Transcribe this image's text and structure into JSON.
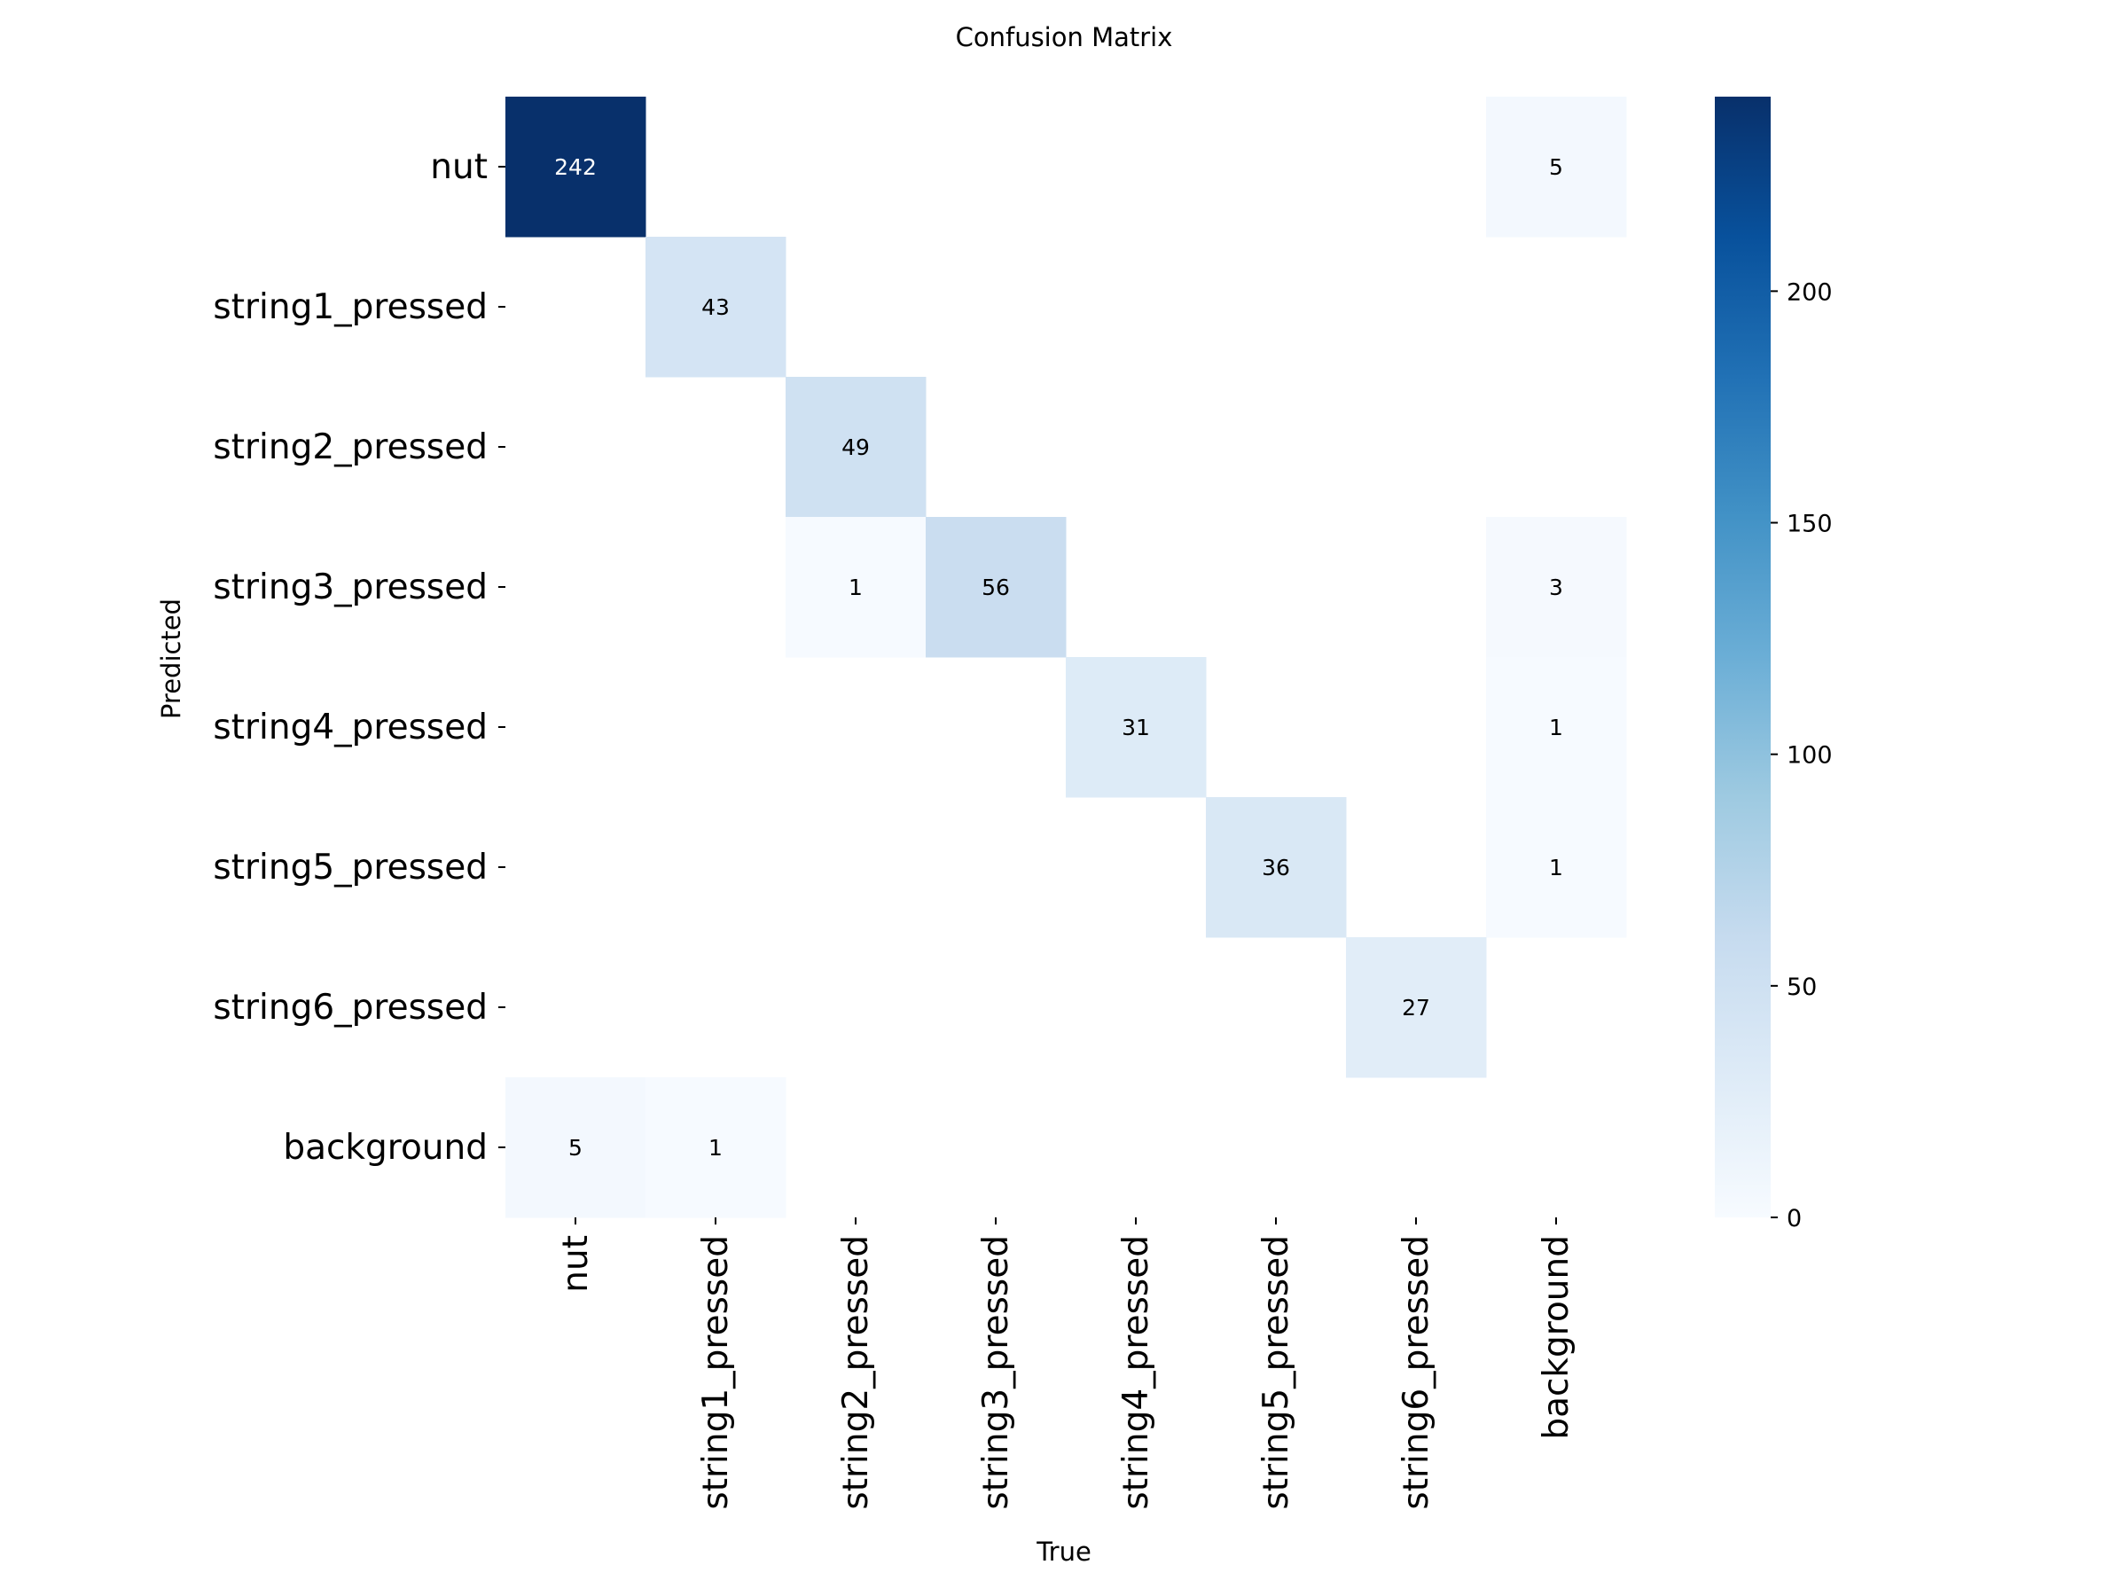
{
  "chart_data": {
    "type": "heatmap",
    "title": "Confusion Matrix",
    "xlabel": "True",
    "ylabel": "Predicted",
    "x_categories": [
      "nut",
      "string1_pressed",
      "string2_pressed",
      "string3_pressed",
      "string4_pressed",
      "string5_pressed",
      "string6_pressed",
      "background"
    ],
    "y_categories": [
      "nut",
      "string1_pressed",
      "string2_pressed",
      "string3_pressed",
      "string4_pressed",
      "string5_pressed",
      "string6_pressed",
      "background"
    ],
    "values": [
      [
        242,
        0,
        0,
        0,
        0,
        0,
        0,
        5
      ],
      [
        0,
        43,
        0,
        0,
        0,
        0,
        0,
        0
      ],
      [
        0,
        0,
        49,
        0,
        0,
        0,
        0,
        0
      ],
      [
        0,
        0,
        1,
        56,
        0,
        0,
        0,
        3
      ],
      [
        0,
        0,
        0,
        0,
        31,
        0,
        0,
        1
      ],
      [
        0,
        0,
        0,
        0,
        0,
        36,
        0,
        1
      ],
      [
        0,
        0,
        0,
        0,
        0,
        0,
        27,
        0
      ],
      [
        5,
        1,
        0,
        0,
        0,
        0,
        0,
        0
      ]
    ],
    "zero_cells_hidden": true,
    "colormap": "Blues",
    "color_stops": [
      "#f7fbff",
      "#deebf7",
      "#c6dbef",
      "#9ecae1",
      "#6baed6",
      "#4292c6",
      "#2171b5",
      "#08519c",
      "#08306b"
    ],
    "colorbar": {
      "range": [
        0,
        242
      ],
      "ticks": [
        "0",
        "50",
        "100",
        "150",
        "200"
      ]
    }
  }
}
